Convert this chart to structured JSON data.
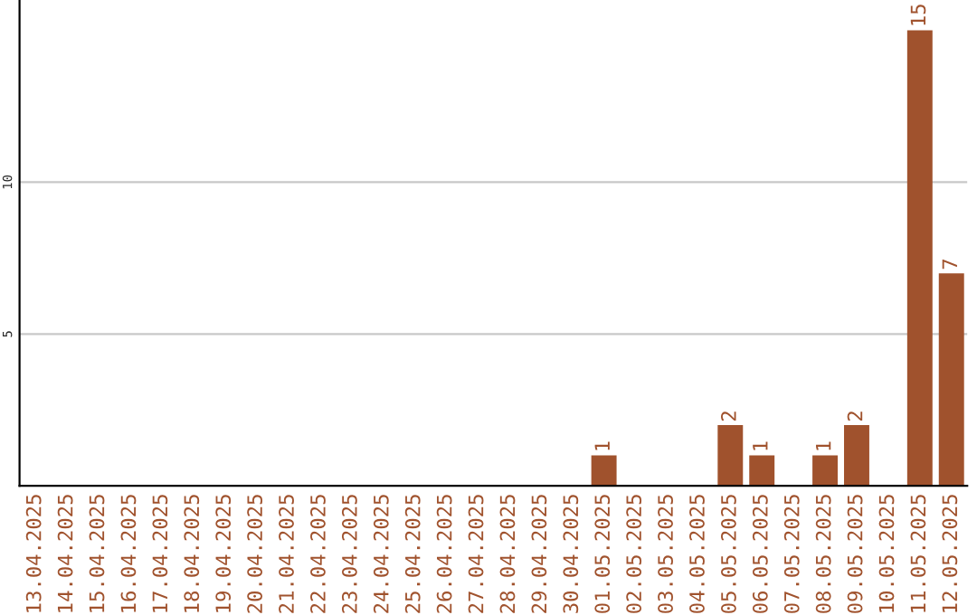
{
  "chart_data": {
    "type": "bar",
    "categories": [
      "13.04.2025",
      "14.04.2025",
      "15.04.2025",
      "16.04.2025",
      "17.04.2025",
      "18.04.2025",
      "19.04.2025",
      "20.04.2025",
      "21.04.2025",
      "22.04.2025",
      "23.04.2025",
      "24.04.2025",
      "25.04.2025",
      "26.04.2025",
      "27.04.2025",
      "28.04.2025",
      "29.04.2025",
      "30.04.2025",
      "01.05.2025",
      "02.05.2025",
      "03.05.2025",
      "04.05.2025",
      "05.05.2025",
      "06.05.2025",
      "07.05.2025",
      "08.05.2025",
      "09.05.2025",
      "10.05.2025",
      "11.05.2025",
      "12.05.2025"
    ],
    "values": [
      0,
      0,
      0,
      0,
      0,
      0,
      0,
      0,
      0,
      0,
      0,
      0,
      0,
      0,
      0,
      0,
      0,
      0,
      1,
      0,
      0,
      0,
      2,
      1,
      0,
      1,
      2,
      0,
      15,
      7
    ],
    "value_labels": [
      null,
      null,
      null,
      null,
      null,
      null,
      null,
      null,
      null,
      null,
      null,
      null,
      null,
      null,
      null,
      null,
      null,
      null,
      "1",
      null,
      null,
      null,
      "2",
      "1",
      null,
      "1",
      "2",
      null,
      "15",
      "7"
    ],
    "color": "#a0522d",
    "ylim": [
      0,
      16
    ],
    "yticks": [
      5,
      10
    ],
    "grid": "y"
  }
}
